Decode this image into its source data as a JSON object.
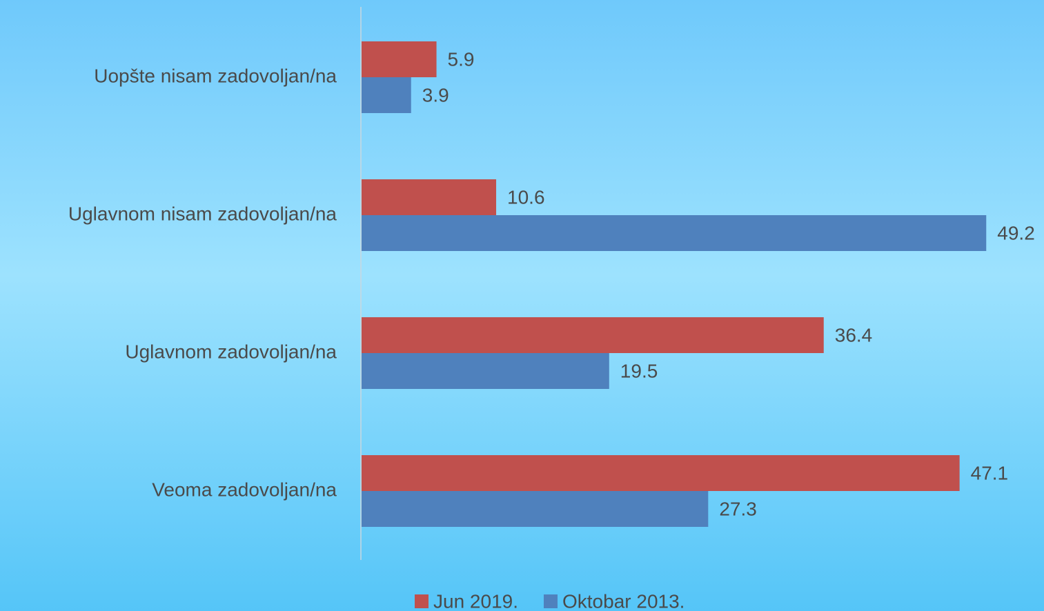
{
  "chart_data": {
    "type": "hbar",
    "categories": [
      "Uopšte nisam zadovoljan/na",
      "Uglavnom nisam zadovoljan/na",
      "Uglavnom zadovoljan/na",
      "Veoma zadovoljan/na"
    ],
    "series": [
      {
        "name": "Jun 2019.",
        "color": "#c0504d",
        "values": [
          5.9,
          10.6,
          36.4,
          47.1
        ]
      },
      {
        "name": "Oktobar 2013.",
        "color": "#4f81bd",
        "values": [
          3.9,
          49.2,
          19.5,
          27.3
        ]
      }
    ],
    "xlim": [
      0,
      50
    ],
    "legend": "bottom"
  }
}
